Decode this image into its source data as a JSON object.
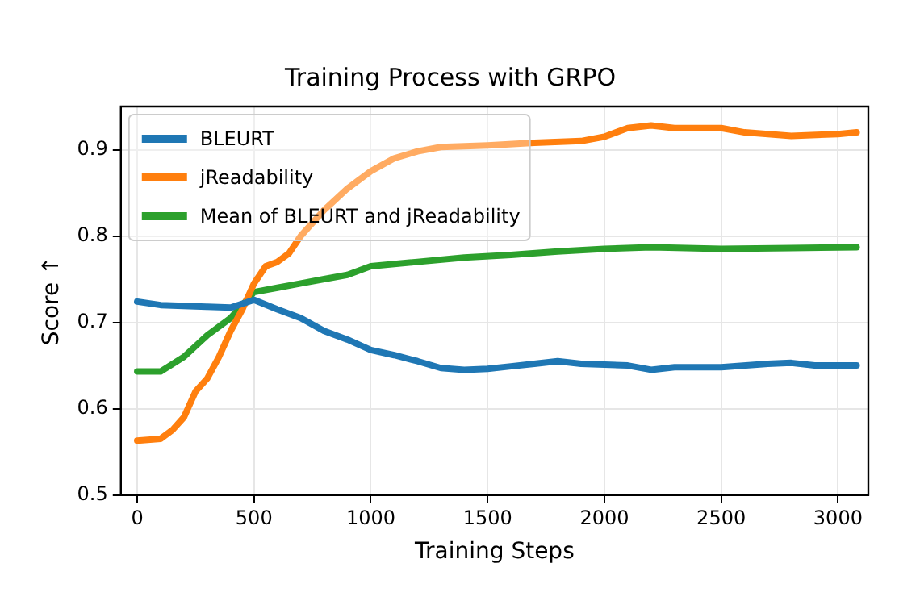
{
  "chart_data": {
    "type": "line",
    "title": "Training Process with GRPO",
    "xlabel": "Training Steps",
    "ylabel": "Score ↑",
    "xlim": [
      -70,
      3130
    ],
    "xticks": [
      0,
      500,
      1000,
      1500,
      2000,
      2500,
      3000
    ],
    "ylim": [
      0.5,
      0.95
    ],
    "yticks": [
      0.5,
      0.6,
      0.7,
      0.8,
      0.9
    ],
    "grid": true,
    "legend": "top left",
    "marker": "none",
    "line_style": "solid",
    "series": [
      {
        "name": "BLEURT",
        "color": "#1f77b4",
        "x": [
          0,
          100,
          300,
          400,
          500,
          600,
          700,
          800,
          900,
          1000,
          1100,
          1200,
          1300,
          1400,
          1500,
          1600,
          1700,
          1800,
          1900,
          2000,
          2100,
          2200,
          2300,
          2500,
          2700,
          2800,
          2900,
          3080
        ],
        "values": [
          0.724,
          0.72,
          0.718,
          0.717,
          0.726,
          0.715,
          0.705,
          0.69,
          0.68,
          0.668,
          0.662,
          0.655,
          0.647,
          0.645,
          0.646,
          0.649,
          0.652,
          0.655,
          0.652,
          0.651,
          0.65,
          0.645,
          0.648,
          0.648,
          0.652,
          0.653,
          0.65,
          0.65
        ]
      },
      {
        "name": "jReadability",
        "color": "#ff7f0e",
        "x": [
          0,
          100,
          150,
          200,
          250,
          300,
          350,
          400,
          450,
          500,
          550,
          600,
          650,
          700,
          800,
          900,
          1000,
          1100,
          1200,
          1300,
          1500,
          1700,
          1900,
          2000,
          2100,
          2200,
          2300,
          2500,
          2600,
          2700,
          2800,
          3000,
          3080
        ],
        "values": [
          0.563,
          0.565,
          0.575,
          0.59,
          0.62,
          0.635,
          0.66,
          0.69,
          0.715,
          0.745,
          0.765,
          0.77,
          0.78,
          0.8,
          0.83,
          0.855,
          0.875,
          0.89,
          0.898,
          0.903,
          0.905,
          0.908,
          0.91,
          0.915,
          0.925,
          0.928,
          0.925,
          0.925,
          0.92,
          0.918,
          0.916,
          0.918,
          0.92
        ]
      },
      {
        "name": "Mean of BLEURT and jReadability",
        "color": "#2ca02c",
        "x": [
          0,
          100,
          200,
          300,
          400,
          500,
          600,
          700,
          800,
          900,
          1000,
          1200,
          1400,
          1600,
          1800,
          2000,
          2200,
          2500,
          2800,
          3080
        ],
        "values": [
          0.643,
          0.643,
          0.66,
          0.685,
          0.705,
          0.735,
          0.74,
          0.745,
          0.75,
          0.755,
          0.765,
          0.77,
          0.775,
          0.778,
          0.782,
          0.785,
          0.787,
          0.785,
          0.786,
          0.787
        ]
      }
    ]
  }
}
